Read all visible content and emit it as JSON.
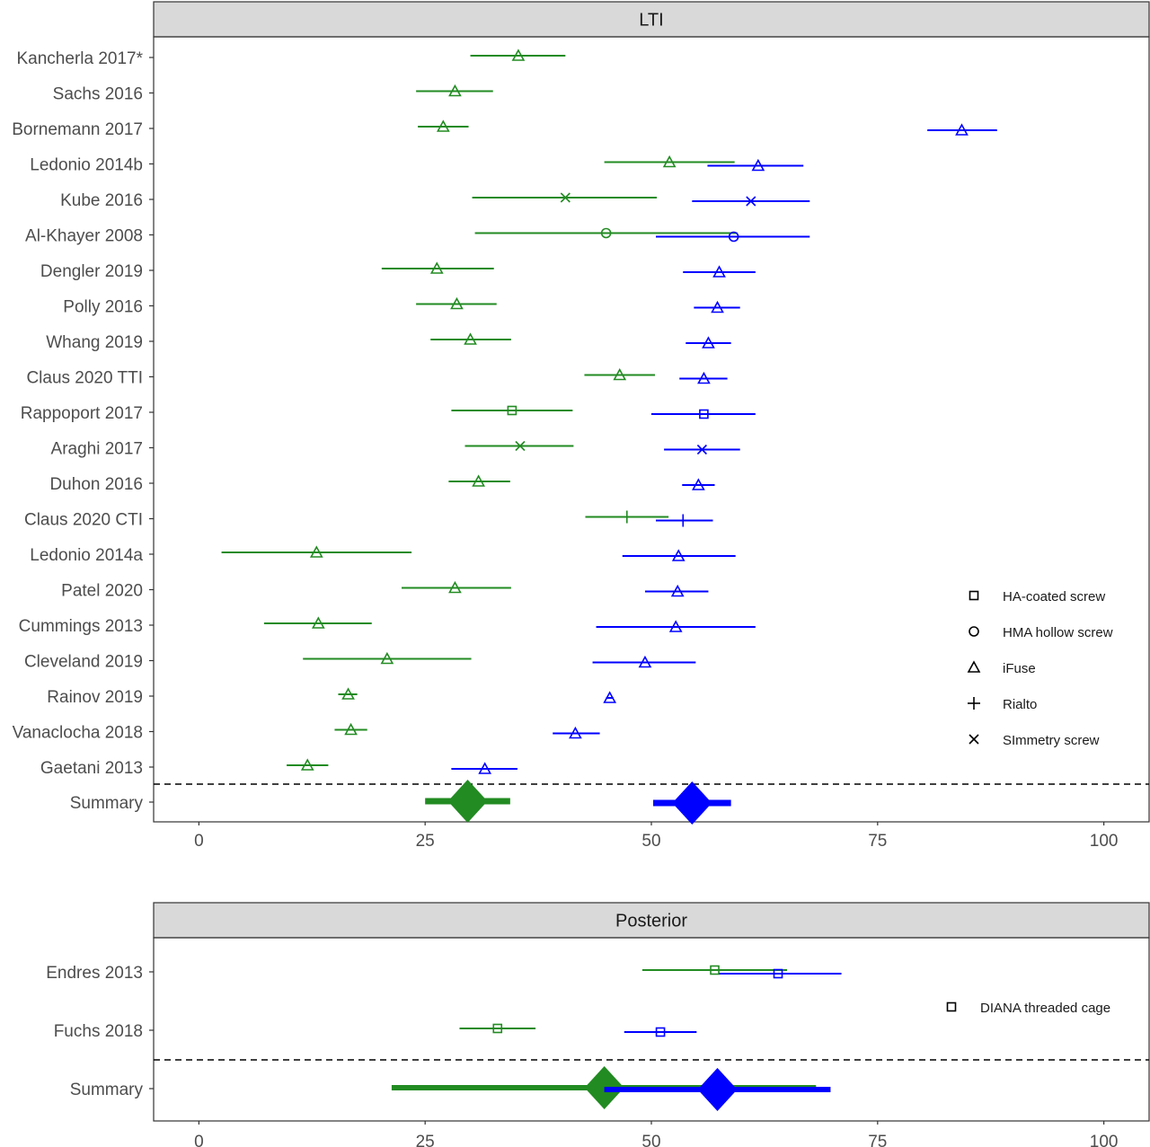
{
  "chart_data": [
    {
      "type": "forest",
      "panel_title": "LTI",
      "xlim": [
        -5,
        105
      ],
      "x_ticks": [
        "0",
        "25",
        "50",
        "75",
        "100"
      ],
      "grid": false,
      "colors": {
        "green": "#228B22",
        "blue": "#0000FF"
      },
      "studies": [
        {
          "label": "Kancherla 2017*",
          "estimates": [
            {
              "color": "green",
              "device": "iFuse",
              "est": 35.3,
              "lo": 30.0,
              "hi": 40.5
            }
          ]
        },
        {
          "label": "Sachs 2016",
          "estimates": [
            {
              "color": "green",
              "device": "iFuse",
              "est": 28.3,
              "lo": 24.0,
              "hi": 32.5
            }
          ]
        },
        {
          "label": "Bornemann 2017",
          "estimates": [
            {
              "color": "green",
              "device": "iFuse",
              "est": 27.0,
              "lo": 24.2,
              "hi": 29.8
            },
            {
              "color": "blue",
              "device": "iFuse",
              "est": 84.3,
              "lo": 80.5,
              "hi": 88.2
            }
          ]
        },
        {
          "label": "Ledonio 2014b",
          "estimates": [
            {
              "color": "green",
              "device": "iFuse",
              "est": 52.0,
              "lo": 44.8,
              "hi": 59.2
            },
            {
              "color": "blue",
              "device": "iFuse",
              "est": 61.8,
              "lo": 56.2,
              "hi": 66.8
            }
          ]
        },
        {
          "label": "Kube 2016",
          "estimates": [
            {
              "color": "green",
              "device": "SImmetry screw",
              "est": 40.5,
              "lo": 30.2,
              "hi": 50.6
            },
            {
              "color": "blue",
              "device": "SImmetry screw",
              "est": 61.0,
              "lo": 54.5,
              "hi": 67.5
            }
          ]
        },
        {
          "label": "Al-Khayer 2008",
          "estimates": [
            {
              "color": "green",
              "device": "HMA hollow screw",
              "est": 45.0,
              "lo": 30.5,
              "hi": 59.5
            },
            {
              "color": "blue",
              "device": "HMA hollow screw",
              "est": 59.1,
              "lo": 50.5,
              "hi": 67.5
            }
          ]
        },
        {
          "label": "Dengler 2019",
          "estimates": [
            {
              "color": "green",
              "device": "iFuse",
              "est": 26.3,
              "lo": 20.2,
              "hi": 32.6
            },
            {
              "color": "blue",
              "device": "iFuse",
              "est": 57.5,
              "lo": 53.5,
              "hi": 61.5
            }
          ]
        },
        {
          "label": "Polly 2016",
          "estimates": [
            {
              "color": "green",
              "device": "iFuse",
              "est": 28.5,
              "lo": 24.0,
              "hi": 32.9
            },
            {
              "color": "blue",
              "device": "iFuse",
              "est": 57.3,
              "lo": 54.7,
              "hi": 59.8
            }
          ]
        },
        {
          "label": "Whang 2019",
          "estimates": [
            {
              "color": "green",
              "device": "iFuse",
              "est": 30.0,
              "lo": 25.6,
              "hi": 34.5
            },
            {
              "color": "blue",
              "device": "iFuse",
              "est": 56.3,
              "lo": 53.8,
              "hi": 58.8
            }
          ]
        },
        {
          "label": "Claus 2020 TTI",
          "estimates": [
            {
              "color": "green",
              "device": "iFuse",
              "est": 46.5,
              "lo": 42.6,
              "hi": 50.4
            },
            {
              "color": "blue",
              "device": "iFuse",
              "est": 55.8,
              "lo": 53.1,
              "hi": 58.4
            }
          ]
        },
        {
          "label": "Rappoport 2017",
          "estimates": [
            {
              "color": "green",
              "device": "HA-coated screw",
              "est": 34.6,
              "lo": 27.9,
              "hi": 41.3
            },
            {
              "color": "blue",
              "device": "HA-coated screw",
              "est": 55.8,
              "lo": 50.0,
              "hi": 61.5
            }
          ]
        },
        {
          "label": "Araghi 2017",
          "estimates": [
            {
              "color": "green",
              "device": "SImmetry screw",
              "est": 35.5,
              "lo": 29.4,
              "hi": 41.4
            },
            {
              "color": "blue",
              "device": "SImmetry screw",
              "est": 55.6,
              "lo": 51.4,
              "hi": 59.8
            }
          ]
        },
        {
          "label": "Duhon 2016",
          "estimates": [
            {
              "color": "green",
              "device": "iFuse",
              "est": 30.9,
              "lo": 27.6,
              "hi": 34.4
            },
            {
              "color": "blue",
              "device": "iFuse",
              "est": 55.2,
              "lo": 53.4,
              "hi": 57.0
            }
          ]
        },
        {
          "label": "Claus 2020 CTI",
          "estimates": [
            {
              "color": "green",
              "device": "Rialto",
              "est": 47.3,
              "lo": 42.7,
              "hi": 51.9
            },
            {
              "color": "blue",
              "device": "Rialto",
              "est": 53.5,
              "lo": 50.5,
              "hi": 56.8
            }
          ]
        },
        {
          "label": "Ledonio 2014a",
          "estimates": [
            {
              "color": "green",
              "device": "iFuse",
              "est": 13.0,
              "lo": 2.5,
              "hi": 23.5
            },
            {
              "color": "blue",
              "device": "iFuse",
              "est": 53.0,
              "lo": 46.8,
              "hi": 59.3
            }
          ]
        },
        {
          "label": "Patel 2020",
          "estimates": [
            {
              "color": "green",
              "device": "iFuse",
              "est": 28.3,
              "lo": 22.4,
              "hi": 34.5
            },
            {
              "color": "blue",
              "device": "iFuse",
              "est": 52.9,
              "lo": 49.3,
              "hi": 56.3
            }
          ]
        },
        {
          "label": "Cummings 2013",
          "estimates": [
            {
              "color": "green",
              "device": "iFuse",
              "est": 13.2,
              "lo": 7.2,
              "hi": 19.1
            },
            {
              "color": "blue",
              "device": "iFuse",
              "est": 52.7,
              "lo": 43.9,
              "hi": 61.5
            }
          ]
        },
        {
          "label": "Cleveland 2019",
          "estimates": [
            {
              "color": "green",
              "device": "iFuse",
              "est": 20.8,
              "lo": 11.5,
              "hi": 30.1
            },
            {
              "color": "blue",
              "device": "iFuse",
              "est": 49.3,
              "lo": 43.5,
              "hi": 54.9
            }
          ]
        },
        {
          "label": "Rainov 2019",
          "estimates": [
            {
              "color": "green",
              "device": "iFuse",
              "est": 16.5,
              "lo": 15.4,
              "hi": 17.5
            },
            {
              "color": "blue",
              "device": "iFuse",
              "est": 45.4,
              "lo": 45.0,
              "hi": 45.8
            }
          ]
        },
        {
          "label": "Vanaclocha 2018",
          "estimates": [
            {
              "color": "green",
              "device": "iFuse",
              "est": 16.8,
              "lo": 15.0,
              "hi": 18.6
            },
            {
              "color": "blue",
              "device": "iFuse",
              "est": 41.6,
              "lo": 39.1,
              "hi": 44.3
            }
          ]
        },
        {
          "label": "Gaetani 2013",
          "estimates": [
            {
              "color": "green",
              "device": "iFuse",
              "est": 12.0,
              "lo": 9.7,
              "hi": 14.3
            },
            {
              "color": "blue",
              "device": "iFuse",
              "est": 31.6,
              "lo": 27.9,
              "hi": 35.2
            }
          ]
        }
      ],
      "summary": {
        "label": "Summary",
        "estimates": [
          {
            "color": "green",
            "est": 29.7,
            "lo": 25.0,
            "hi": 34.4
          },
          {
            "color": "blue",
            "est": 54.5,
            "lo": 50.2,
            "hi": 58.8
          }
        ]
      },
      "legend": {
        "placement": "right",
        "entries": [
          {
            "shape": "square",
            "label": "HA-coated screw"
          },
          {
            "shape": "circle",
            "label": "HMA hollow screw"
          },
          {
            "shape": "triangle",
            "label": "iFuse"
          },
          {
            "shape": "plus",
            "label": "Rialto"
          },
          {
            "shape": "cross",
            "label": "SImmetry screw"
          }
        ]
      }
    },
    {
      "type": "forest",
      "panel_title": "Posterior",
      "xlim": [
        -5,
        105
      ],
      "x_ticks": [
        "0",
        "25",
        "50",
        "75",
        "100"
      ],
      "grid": false,
      "colors": {
        "green": "#228B22",
        "blue": "#0000FF"
      },
      "studies": [
        {
          "label": "Endres 2013",
          "estimates": [
            {
              "color": "green",
              "device": "DIANA threaded cage",
              "est": 57.0,
              "lo": 49.0,
              "hi": 65.0
            },
            {
              "color": "blue",
              "device": "DIANA threaded cage",
              "est": 64.0,
              "lo": 57.5,
              "hi": 71.0
            }
          ]
        },
        {
          "label": "Fuchs 2018",
          "estimates": [
            {
              "color": "green",
              "device": "DIANA threaded cage",
              "est": 33.0,
              "lo": 28.8,
              "hi": 37.2
            },
            {
              "color": "blue",
              "device": "DIANA threaded cage",
              "est": 51.0,
              "lo": 47.0,
              "hi": 55.0
            }
          ]
        }
      ],
      "summary": {
        "label": "Summary",
        "estimates": [
          {
            "color": "green",
            "est": 44.8,
            "lo": 21.3,
            "hi": 68.2
          },
          {
            "color": "blue",
            "est": 57.3,
            "lo": 44.8,
            "hi": 69.8
          }
        ]
      },
      "legend": {
        "placement": "right",
        "entries": [
          {
            "shape": "square",
            "label": "DIANA threaded cage"
          }
        ]
      }
    }
  ]
}
